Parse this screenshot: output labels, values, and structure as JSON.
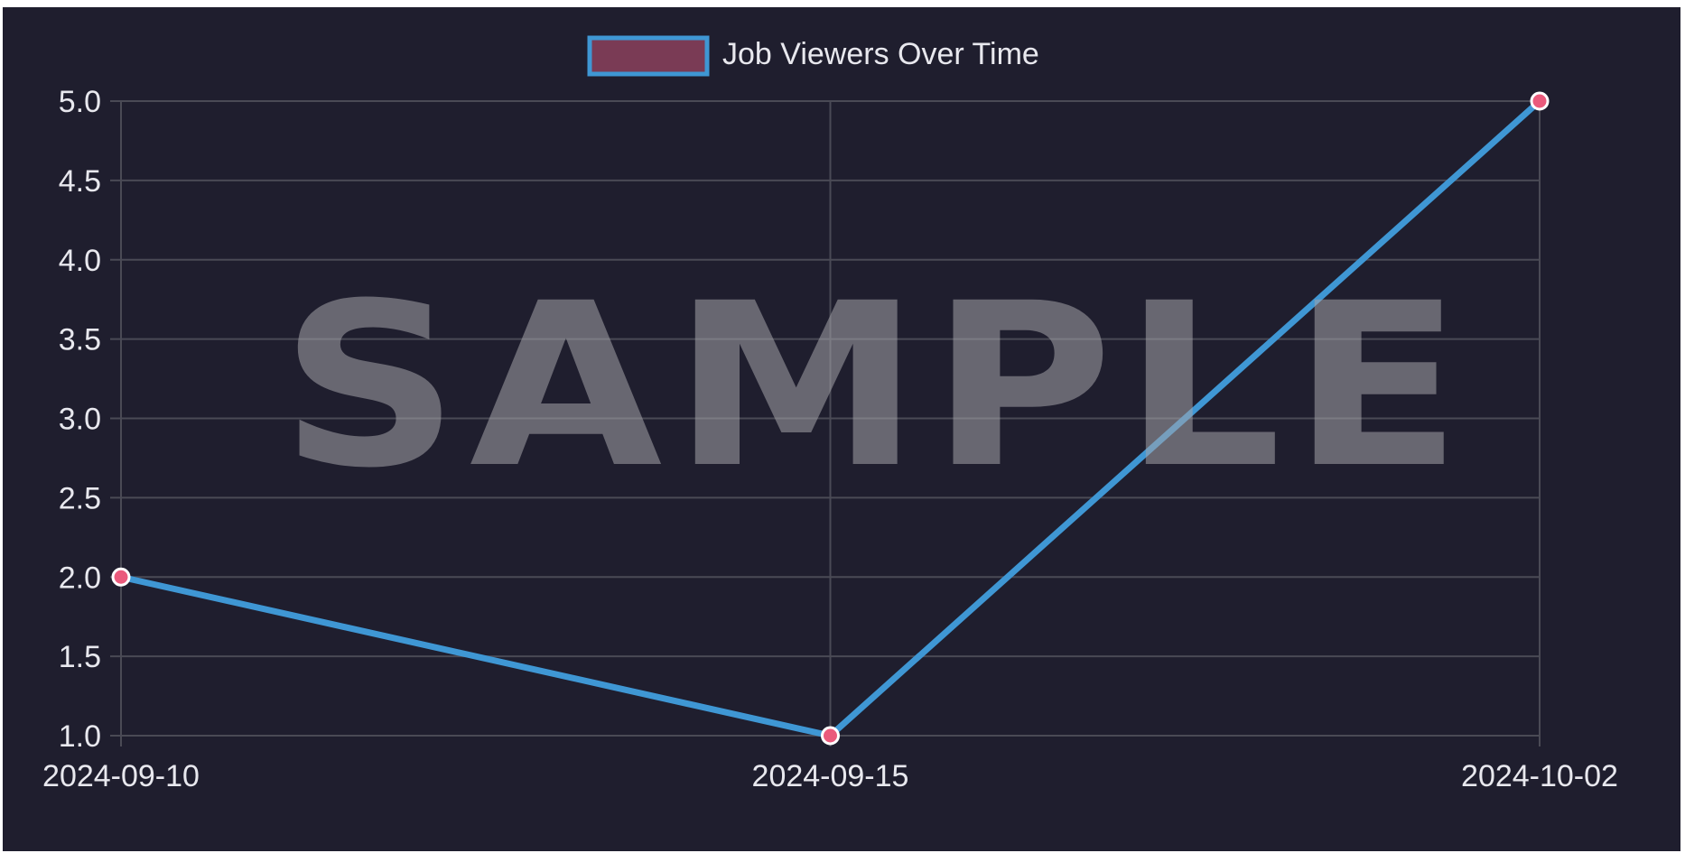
{
  "chart_data": {
    "type": "line",
    "categories": [
      "2024-09-10",
      "2024-09-15",
      "2024-10-02"
    ],
    "series": [
      {
        "name": "Job Viewers Over Time",
        "values": [
          2,
          1,
          5
        ]
      }
    ],
    "y_ticks": [
      "1.0",
      "1.5",
      "2.0",
      "2.5",
      "3.0",
      "3.5",
      "4.0",
      "4.5",
      "5.0"
    ],
    "ylim": [
      1,
      5
    ],
    "grid": true,
    "legend_position": "top-center",
    "watermark": "SAMPLE",
    "colors": {
      "background": "#1f1e2e",
      "grid": "#4a4a55",
      "line": "#3f97d4",
      "point_fill": "#ea5a7c",
      "point_stroke": "#ffffff",
      "legend_fill": "#7a3b55",
      "legend_stroke": "#3f97d4",
      "text": "#e8e8ee",
      "watermark": "#a4a4aa"
    }
  }
}
